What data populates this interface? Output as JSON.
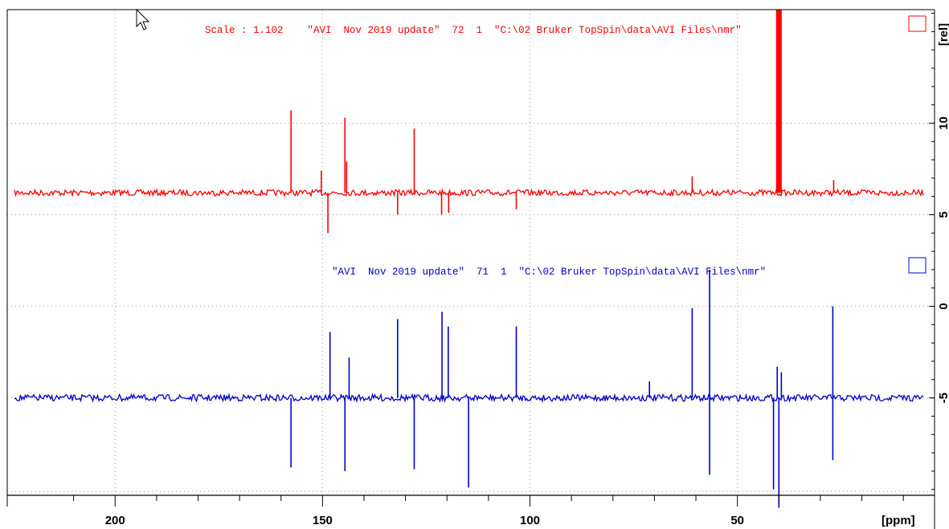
{
  "chart_data": [
    {
      "type": "line",
      "name": "spectrum-red",
      "color": "#ff0000",
      "header_text": "Scale : 1.102    \"AVI  Nov 2019 update\"  72  1  \"C:\\02 Bruker TopSpin\\data\\AVI Files\\nmr\"",
      "baseline": 6.2,
      "noise": 0.18,
      "peaks": [
        {
          "ppm": 157.6,
          "value": 10.7
        },
        {
          "ppm": 150.3,
          "value": 7.4
        },
        {
          "ppm": 148.7,
          "value": 4.0
        },
        {
          "ppm": 144.6,
          "value": 10.3
        },
        {
          "ppm": 144.2,
          "value": 7.9
        },
        {
          "ppm": 131.9,
          "value": 5.0
        },
        {
          "ppm": 127.9,
          "value": 9.7
        },
        {
          "ppm": 121.3,
          "value": 5.0
        },
        {
          "ppm": 119.6,
          "value": 5.1
        },
        {
          "ppm": 103.3,
          "value": 5.3
        },
        {
          "ppm": 60.9,
          "value": 7.1
        },
        {
          "ppm": 40.4,
          "value": 16.2
        },
        {
          "ppm": 40.0,
          "value": 16.2
        },
        {
          "ppm": 39.6,
          "value": 16.2
        },
        {
          "ppm": 26.8,
          "value": 6.9
        }
      ]
    },
    {
      "type": "line",
      "name": "spectrum-blue",
      "color": "#0000cc",
      "header_text": "\"AVI  Nov 2019 update\"  71  1  \"C:\\02 Bruker TopSpin\\data\\AVI Files\\nmr\"",
      "baseline": -5.0,
      "noise": 0.2,
      "peaks": [
        {
          "ppm": 157.6,
          "value": -8.8
        },
        {
          "ppm": 148.2,
          "value": -1.4
        },
        {
          "ppm": 144.6,
          "value": -9.0
        },
        {
          "ppm": 143.6,
          "value": -2.8
        },
        {
          "ppm": 131.9,
          "value": -0.7
        },
        {
          "ppm": 127.9,
          "value": -8.9
        },
        {
          "ppm": 121.2,
          "value": -0.3
        },
        {
          "ppm": 119.7,
          "value": -1.1
        },
        {
          "ppm": 114.8,
          "value": -9.9
        },
        {
          "ppm": 103.3,
          "value": -1.1
        },
        {
          "ppm": 71.2,
          "value": -4.1
        },
        {
          "ppm": 60.9,
          "value": -0.1
        },
        {
          "ppm": 56.7,
          "value": 2.0
        },
        {
          "ppm": 56.7,
          "value": -9.2
        },
        {
          "ppm": 41.3,
          "value": -10.0
        },
        {
          "ppm": 40.4,
          "value": -3.3
        },
        {
          "ppm": 40.0,
          "value": -11.0
        },
        {
          "ppm": 39.4,
          "value": -3.6
        },
        {
          "ppm": 27.0,
          "value": 0.0
        },
        {
          "ppm": 27.0,
          "value": -8.4
        }
      ]
    }
  ],
  "axes": {
    "x_unit_label": "[ppm]",
    "x_range": [
      226,
      5
    ],
    "x_major_ticks": [
      200,
      150,
      100,
      50
    ],
    "x_minor_ticks": [
      210,
      190,
      180,
      170,
      160,
      140,
      130,
      120,
      110,
      90,
      80,
      70,
      60,
      40,
      30,
      20,
      10
    ],
    "y_unit_label": "[rel]",
    "y_range": [
      -10.1,
      16.2
    ],
    "y_major_ticks": [
      10,
      5,
      0,
      -5
    ],
    "y_tick_labels": [
      "10",
      "5",
      "0",
      "-5"
    ],
    "grid": true
  }
}
